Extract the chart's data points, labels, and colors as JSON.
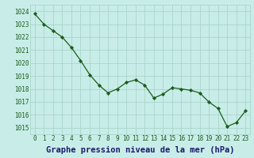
{
  "x": [
    0,
    1,
    2,
    3,
    4,
    5,
    6,
    7,
    8,
    9,
    10,
    11,
    12,
    13,
    14,
    15,
    16,
    17,
    18,
    19,
    20,
    21,
    22,
    23
  ],
  "y": [
    1023.8,
    1023.0,
    1022.5,
    1022.0,
    1021.2,
    1020.2,
    1019.1,
    1018.3,
    1017.7,
    1018.0,
    1018.5,
    1018.7,
    1018.3,
    1017.3,
    1017.6,
    1018.1,
    1018.0,
    1017.9,
    1017.7,
    1017.0,
    1016.5,
    1015.1,
    1015.4,
    1016.3
  ],
  "xlim": [
    -0.5,
    23.5
  ],
  "ylim": [
    1014.5,
    1024.5
  ],
  "yticks": [
    1015,
    1016,
    1017,
    1018,
    1019,
    1020,
    1021,
    1022,
    1023,
    1024
  ],
  "xticks": [
    0,
    1,
    2,
    3,
    4,
    5,
    6,
    7,
    8,
    9,
    10,
    11,
    12,
    13,
    14,
    15,
    16,
    17,
    18,
    19,
    20,
    21,
    22,
    23
  ],
  "xlabel": "Graphe pression niveau de la mer (hPa)",
  "line_color": "#1a5c1a",
  "marker_color": "#1a5c1a",
  "bg_color": "#c8ede8",
  "grid_color": "#aad4cc",
  "text_color": "#1a5c1a",
  "label_color": "#1a1a6a",
  "tick_fontsize": 5.5,
  "xlabel_fontsize": 7.5
}
